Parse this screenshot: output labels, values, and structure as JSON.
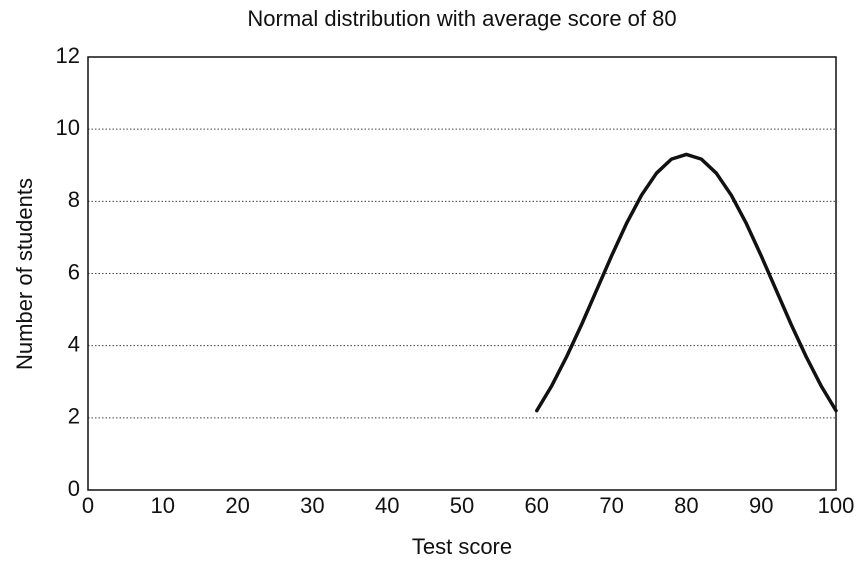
{
  "chart_data": {
    "type": "line",
    "title": "Normal distribution with average score of 80",
    "xlabel": "Test score",
    "ylabel": "Number of students",
    "x": [
      60,
      62,
      64,
      66,
      68,
      70,
      72,
      74,
      76,
      78,
      80,
      82,
      84,
      86,
      88,
      90,
      92,
      94,
      96,
      98,
      100
    ],
    "values": [
      2.2,
      2.89,
      3.7,
      4.59,
      5.54,
      6.49,
      7.39,
      8.17,
      8.78,
      9.17,
      9.3,
      9.17,
      8.78,
      8.17,
      7.39,
      6.49,
      5.54,
      4.59,
      3.7,
      2.89,
      2.2
    ],
    "color": "#111111",
    "xlim": [
      0,
      100
    ],
    "xticks": [
      0,
      10,
      20,
      30,
      40,
      50,
      60,
      70,
      80,
      90,
      100
    ],
    "ylim": [
      0,
      12
    ],
    "yticks": [
      0,
      2,
      4,
      6,
      8,
      10,
      12
    ],
    "grid": true
  }
}
